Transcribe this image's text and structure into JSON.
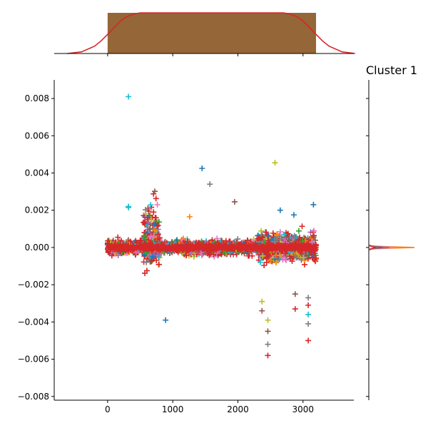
{
  "chart_data": {
    "type": "scatter",
    "marker": "plus",
    "title": "Cluster 1",
    "xlabel": "",
    "ylabel": "",
    "xlim": [
      -820,
      3780
    ],
    "ylim": [
      -0.0082,
      0.009
    ],
    "x_ticks": [
      0,
      1000,
      2000,
      3000
    ],
    "x_tick_labels": [
      "0",
      "1000",
      "2000",
      "3000"
    ],
    "y_ticks": [
      -0.008,
      -0.006,
      -0.004,
      -0.002,
      0.0,
      0.002,
      0.004,
      0.006,
      0.008
    ],
    "y_tick_labels": [
      "−0.008",
      "−0.006",
      "−0.004",
      "−0.002",
      "0.000",
      "0.002",
      "0.004",
      "0.006",
      "0.008"
    ],
    "grid": false,
    "x_range_of_points": [
      0,
      3200
    ],
    "series_colors": [
      "#1f77b4",
      "#ff7f0e",
      "#2ca02c",
      "#d62728",
      "#9467bd",
      "#8c564b",
      "#e377c2",
      "#7f7f7f",
      "#bcbd22",
      "#17becf"
    ],
    "notable_points": [
      {
        "x": 320,
        "y": 0.0081,
        "color": "#17becf"
      },
      {
        "x": 320,
        "y": 0.0022,
        "color": "#17becf"
      },
      {
        "x": 320,
        "y": 0.00215,
        "color": "#17becf"
      },
      {
        "x": 1450,
        "y": 0.00425,
        "color": "#1f77b4"
      },
      {
        "x": 1570,
        "y": 0.0034,
        "color": "#7f7f7f"
      },
      {
        "x": 2570,
        "y": 0.00455,
        "color": "#bcbd22"
      },
      {
        "x": 890,
        "y": -0.0039,
        "color": "#1f77b4"
      },
      {
        "x": 1950,
        "y": 0.00245,
        "color": "#8c564b"
      },
      {
        "x": 1260,
        "y": 0.00165,
        "color": "#ff7f0e"
      },
      {
        "x": 3080,
        "y": -0.005,
        "color": "#d62728"
      },
      {
        "x": 2460,
        "y": -0.0058,
        "color": "#d62728"
      },
      {
        "x": 2460,
        "y": -0.0052,
        "color": "#7f7f7f"
      },
      {
        "x": 2460,
        "y": -0.0045,
        "color": "#8c564b"
      },
      {
        "x": 2460,
        "y": -0.0039,
        "color": "#bcbd22"
      },
      {
        "x": 3080,
        "y": -0.0041,
        "color": "#7f7f7f"
      },
      {
        "x": 3080,
        "y": -0.0036,
        "color": "#17becf"
      },
      {
        "x": 3080,
        "y": -0.0031,
        "color": "#d62728"
      },
      {
        "x": 3080,
        "y": -0.0027,
        "color": "#7f7f7f"
      },
      {
        "x": 2880,
        "y": -0.0025,
        "color": "#8c564b"
      },
      {
        "x": 2880,
        "y": -0.0033,
        "color": "#d62728"
      },
      {
        "x": 2370,
        "y": -0.0029,
        "color": "#bcbd22"
      },
      {
        "x": 2370,
        "y": -0.0034,
        "color": "#8c564b"
      },
      {
        "x": 2650,
        "y": 0.002,
        "color": "#1f77b4"
      },
      {
        "x": 3160,
        "y": 0.0023,
        "color": "#1f77b4"
      },
      {
        "x": 2860,
        "y": 0.00175,
        "color": "#1f77b4"
      }
    ],
    "top_marginal": {
      "type": "histogram+kde",
      "bar_color": "#946638",
      "kde_color": "#d62728",
      "hist_range": [
        0,
        3200
      ],
      "hist_height": 1.0,
      "kde_x": [
        -620,
        -400,
        -200,
        -100,
        0,
        100,
        200,
        300,
        400,
        500,
        700,
        2500,
        2700,
        2800,
        2900,
        3000,
        3100,
        3200,
        3300,
        3400,
        3600,
        3800
      ],
      "kde_y": [
        0.0,
        0.04,
        0.18,
        0.31,
        0.47,
        0.64,
        0.8,
        0.91,
        0.97,
        1.0,
        1.0,
        1.0,
        1.0,
        0.97,
        0.91,
        0.8,
        0.64,
        0.47,
        0.31,
        0.18,
        0.04,
        0.0
      ]
    },
    "right_marginal": {
      "type": "kde",
      "series": [
        {
          "color": "#ff7f0e",
          "y": [
            -8e-05,
            -4e-05,
            0.0,
            4e-05,
            8e-05
          ],
          "density": [
            0.05,
            0.45,
            1.0,
            0.45,
            0.05
          ]
        },
        {
          "color": "#e377c2",
          "y": [
            -8e-05,
            -4e-05,
            0.0,
            4e-05,
            8e-05
          ],
          "density": [
            0.04,
            0.25,
            0.6,
            0.25,
            0.04
          ]
        },
        {
          "color": "#9467bd",
          "y": [
            -8e-05,
            -4e-05,
            0.0,
            4e-05,
            8e-05
          ],
          "density": [
            0.03,
            0.2,
            0.45,
            0.2,
            0.03
          ]
        },
        {
          "color": "#8c564b",
          "y": [
            -0.0001,
            -5e-05,
            0.0,
            5e-05,
            0.0001
          ],
          "density": [
            0.03,
            0.12,
            0.3,
            0.12,
            0.03
          ]
        },
        {
          "color": "#7f7f7f",
          "y": [
            -0.00012,
            -6e-05,
            0.0,
            6e-05,
            0.00012
          ],
          "density": [
            0.02,
            0.08,
            0.2,
            0.08,
            0.02
          ]
        },
        {
          "color": "#d62728",
          "y": [
            -0.00012,
            -6e-05,
            0.0,
            6e-05,
            0.00012
          ],
          "density": [
            0.02,
            0.06,
            0.15,
            0.06,
            0.02
          ]
        }
      ],
      "density_max": 1.0
    }
  }
}
